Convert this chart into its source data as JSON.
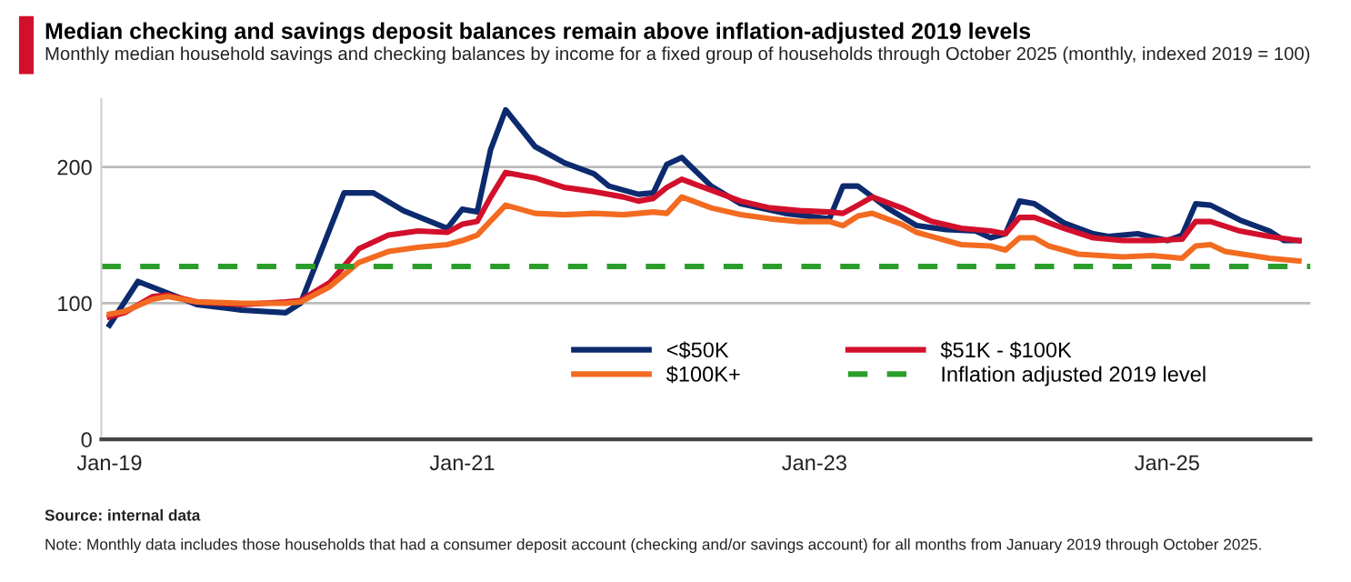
{
  "chart_data": {
    "type": "line",
    "title": "Median checking and savings deposit balances remain above inflation-adjusted 2019 levels",
    "subtitle": "Monthly median household savings and checking balances by income for a fixed group of households through October 2025 (monthly, indexed 2019 = 100)",
    "series": [
      {
        "name": "<$50K",
        "color": "#0c2a6e",
        "x": [
          "2019-01",
          "2019-03",
          "2019-07",
          "2019-10",
          "2020-01",
          "2020-02",
          "2020-05",
          "2020-07",
          "2020-09",
          "2020-12",
          "2021-01",
          "2021-02",
          "2021-03",
          "2021-04",
          "2021-06",
          "2021-08",
          "2021-10",
          "2021-11",
          "2022-01",
          "2022-02",
          "2022-03",
          "2022-04",
          "2022-06",
          "2022-08",
          "2022-11",
          "2023-02",
          "2023-03",
          "2023-04",
          "2023-06",
          "2023-08",
          "2023-10",
          "2023-12",
          "2024-01",
          "2024-02",
          "2024-03",
          "2024-04",
          "2024-06",
          "2024-08",
          "2024-09",
          "2024-11",
          "2025-01",
          "2025-02",
          "2025-03",
          "2025-04",
          "2025-06",
          "2025-08",
          "2025-09",
          "2025-10"
        ],
        "values": [
          84,
          116,
          99,
          95,
          93,
          100,
          181,
          181,
          168,
          155,
          169,
          167,
          213,
          242,
          215,
          203,
          195,
          186,
          180,
          181,
          202,
          207,
          186,
          173,
          166,
          162,
          186,
          186,
          170,
          157,
          154,
          153,
          148,
          151,
          175,
          173,
          159,
          151,
          149,
          151,
          146,
          150,
          173,
          172,
          161,
          153,
          146,
          146
        ]
      },
      {
        "name": "$51K - $100K",
        "color": "#d2102c",
        "x": [
          "2019-01",
          "2019-02",
          "2019-04",
          "2019-05",
          "2019-07",
          "2019-10",
          "2020-01",
          "2020-02",
          "2020-04",
          "2020-06",
          "2020-08",
          "2020-10",
          "2020-12",
          "2021-01",
          "2021-02",
          "2021-03",
          "2021-04",
          "2021-06",
          "2021-08",
          "2021-10",
          "2021-12",
          "2022-01",
          "2022-02",
          "2022-03",
          "2022-04",
          "2022-06",
          "2022-08",
          "2022-10",
          "2022-12",
          "2023-02",
          "2023-03",
          "2023-04",
          "2023-05",
          "2023-07",
          "2023-09",
          "2023-11",
          "2024-01",
          "2024-02",
          "2024-03",
          "2024-04",
          "2024-06",
          "2024-08",
          "2024-10",
          "2024-12",
          "2025-02",
          "2025-03",
          "2025-04",
          "2025-06",
          "2025-08",
          "2025-10"
        ],
        "values": [
          90,
          93,
          105,
          106,
          101,
          99,
          101,
          102,
          115,
          140,
          150,
          153,
          152,
          158,
          160,
          178,
          196,
          192,
          185,
          182,
          178,
          175,
          177,
          185,
          191,
          183,
          175,
          170,
          168,
          167,
          166,
          172,
          178,
          170,
          160,
          155,
          153,
          151,
          163,
          163,
          155,
          148,
          146,
          146,
          147,
          160,
          160,
          153,
          149,
          146
        ]
      },
      {
        "name": "$100K+",
        "color": "#f26b21",
        "x": [
          "2019-01",
          "2019-02",
          "2019-04",
          "2019-05",
          "2019-07",
          "2019-10",
          "2020-01",
          "2020-02",
          "2020-04",
          "2020-06",
          "2020-08",
          "2020-10",
          "2020-12",
          "2021-01",
          "2021-02",
          "2021-04",
          "2021-06",
          "2021-08",
          "2021-10",
          "2021-12",
          "2022-02",
          "2022-03",
          "2022-04",
          "2022-06",
          "2022-08",
          "2022-10",
          "2022-12",
          "2023-02",
          "2023-03",
          "2023-04",
          "2023-05",
          "2023-07",
          "2023-08",
          "2023-10",
          "2023-11",
          "2024-01",
          "2024-02",
          "2024-03",
          "2024-04",
          "2024-05",
          "2024-07",
          "2024-10",
          "2024-12",
          "2025-02",
          "2025-03",
          "2025-04",
          "2025-05",
          "2025-08",
          "2025-10"
        ],
        "values": [
          92,
          94,
          103,
          105,
          101,
          100,
          100,
          101,
          112,
          130,
          138,
          141,
          143,
          146,
          150,
          172,
          166,
          165,
          166,
          165,
          167,
          166,
          178,
          170,
          165,
          162,
          160,
          160,
          157,
          164,
          166,
          158,
          152,
          146,
          143,
          142,
          139,
          148,
          148,
          142,
          136,
          134,
          135,
          133,
          142,
          143,
          138,
          133,
          131
        ]
      }
    ],
    "ref_lines": [
      {
        "axis": "y",
        "value": 127,
        "label": "Inflation adjusted 2019 level",
        "color": "#2a9d2a",
        "line_style": "dashed"
      }
    ],
    "xlim": [
      "2018-12-15",
      "2025-10-25"
    ],
    "xticks": [
      {
        "value": "2019-01",
        "label": "Jan-19"
      },
      {
        "value": "2021-01",
        "label": "Jan-21"
      },
      {
        "value": "2023-01",
        "label": "Jan-23"
      },
      {
        "value": "2025-01",
        "label": "Jan-25"
      }
    ],
    "ylim": [
      0,
      250
    ],
    "yticks": [
      0,
      100,
      200
    ],
    "grid": "y",
    "legend": "bottom right",
    "marker": "none",
    "line_style": "solid",
    "annotations": [
      "Source: internal data",
      "Note: Monthly data includes those households that had a consumer deposit account (checking and/or savings account) for all months from January 2019 through October 2025."
    ]
  }
}
